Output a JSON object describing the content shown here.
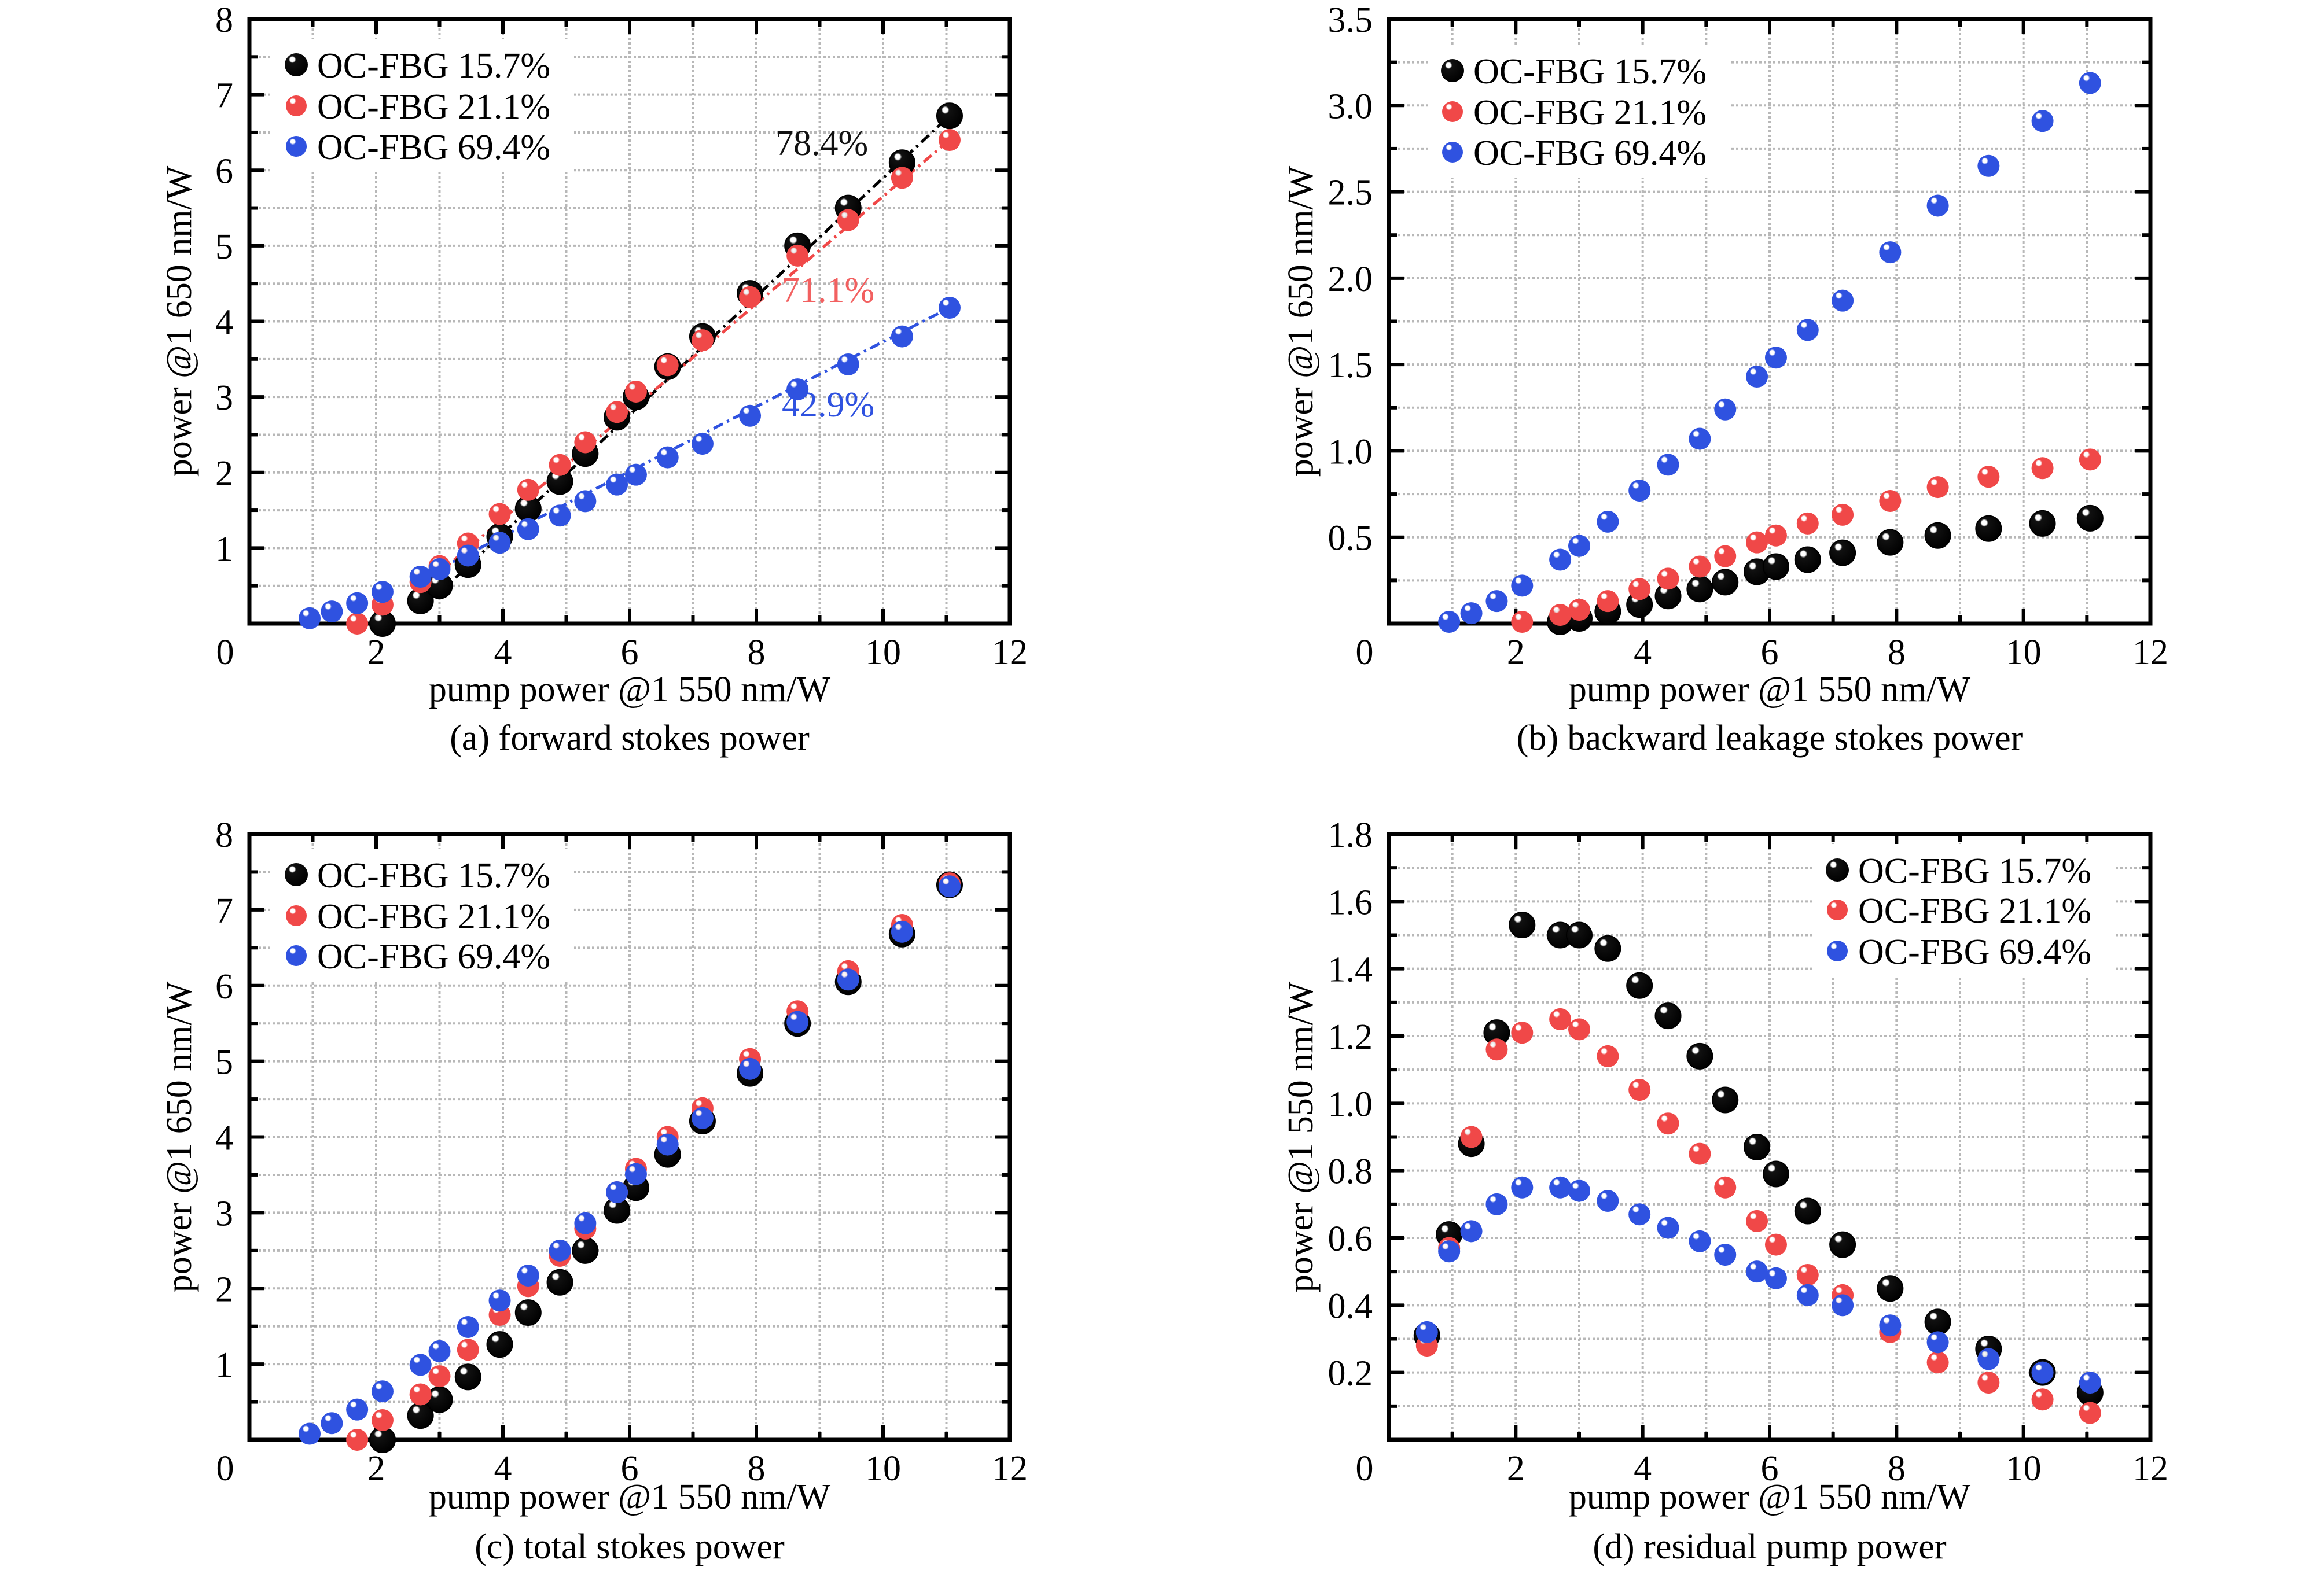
{
  "chart_data": [
    {
      "type": "scatter",
      "title": "(a) forward stokes power",
      "xlabel": "pump power @1 550 nm/W",
      "ylabel": "power @1 650 nm/W",
      "xlim": [
        0,
        12
      ],
      "ylim": [
        0,
        8
      ],
      "xticks": [
        "0",
        "2",
        "4",
        "6",
        "8",
        "10",
        "12"
      ],
      "yticks": [
        "1",
        "2",
        "3",
        "4",
        "5",
        "6",
        "7",
        "8"
      ],
      "grid": true,
      "legend": "top-left",
      "series": [
        {
          "name": "OC-FBG 15.7%",
          "color": "#111111",
          "x": [
            2.1,
            2.7,
            3.0,
            3.45,
            3.95,
            4.4,
            4.9,
            5.3,
            5.8,
            6.1,
            6.6,
            7.15,
            7.9,
            8.65,
            9.45,
            10.3,
            11.05
          ],
          "y": [
            0.0,
            0.3,
            0.5,
            0.78,
            1.15,
            1.52,
            1.88,
            2.25,
            2.73,
            3.0,
            3.4,
            3.8,
            4.37,
            5.0,
            5.5,
            6.1,
            6.72
          ],
          "fit": {
            "slope_label": "78.4%",
            "from": 3.0,
            "to": 11.05
          }
        },
        {
          "name": "OC-FBG 21.1%",
          "color": "#f04848",
          "x": [
            1.7,
            2.1,
            2.7,
            3.0,
            3.45,
            3.95,
            4.4,
            4.9,
            5.3,
            5.8,
            6.1,
            6.6,
            7.15,
            7.9,
            8.65,
            9.45,
            10.3,
            11.05
          ],
          "y": [
            0.0,
            0.25,
            0.55,
            0.76,
            1.06,
            1.45,
            1.77,
            2.1,
            2.4,
            2.8,
            3.07,
            3.42,
            3.75,
            4.32,
            4.87,
            5.34,
            5.9,
            6.4
          ],
          "fit": {
            "slope_label": "71.1%",
            "from": 2.7,
            "to": 11.05
          }
        },
        {
          "name": "OC-FBG 69.4%",
          "color": "#2f52e0",
          "x": [
            0.95,
            1.3,
            1.7,
            2.1,
            2.7,
            3.0,
            3.45,
            3.95,
            4.4,
            4.9,
            5.3,
            5.8,
            6.1,
            6.6,
            7.15,
            7.9,
            8.65,
            9.45,
            10.3,
            11.05
          ],
          "y": [
            0.07,
            0.16,
            0.27,
            0.42,
            0.62,
            0.72,
            0.9,
            1.07,
            1.25,
            1.43,
            1.62,
            1.84,
            1.97,
            2.2,
            2.38,
            2.75,
            3.1,
            3.43,
            3.8,
            4.18
          ],
          "fit": {
            "slope_label": "42.9%",
            "from": 3.0,
            "to": 11.05
          }
        }
      ]
    },
    {
      "type": "scatter",
      "title": "(b) backward leakage stokes power",
      "xlabel": "pump power @1 550 nm/W",
      "ylabel": "power @1 650 nm/W",
      "xlim": [
        0,
        12
      ],
      "ylim": [
        0,
        3.5
      ],
      "xticks": [
        "0",
        "2",
        "4",
        "6",
        "8",
        "10",
        "12"
      ],
      "yticks": [
        "0.5",
        "1.0",
        "1.5",
        "2.0",
        "2.5",
        "3.0",
        "3.5"
      ],
      "grid": true,
      "legend": "top-left",
      "series": [
        {
          "name": "OC-FBG 15.7%",
          "color": "#111111",
          "x": [
            2.7,
            3.0,
            3.45,
            3.95,
            4.4,
            4.9,
            5.3,
            5.8,
            6.1,
            6.6,
            7.15,
            7.9,
            8.65,
            9.45,
            10.3,
            11.05
          ],
          "y": [
            0.01,
            0.03,
            0.07,
            0.11,
            0.16,
            0.2,
            0.24,
            0.3,
            0.33,
            0.37,
            0.41,
            0.47,
            0.51,
            0.55,
            0.58,
            0.61
          ]
        },
        {
          "name": "OC-FBG 21.1%",
          "color": "#f04848",
          "x": [
            2.1,
            2.7,
            3.0,
            3.45,
            3.95,
            4.4,
            4.9,
            5.3,
            5.8,
            6.1,
            6.6,
            7.15,
            7.9,
            8.65,
            9.45,
            10.3,
            11.05
          ],
          "y": [
            0.01,
            0.05,
            0.08,
            0.13,
            0.2,
            0.26,
            0.33,
            0.39,
            0.47,
            0.51,
            0.58,
            0.63,
            0.71,
            0.79,
            0.85,
            0.9,
            0.95
          ]
        },
        {
          "name": "OC-FBG 69.4%",
          "color": "#2f52e0",
          "x": [
            0.95,
            1.3,
            1.7,
            2.1,
            2.7,
            3.0,
            3.45,
            3.95,
            4.4,
            4.9,
            5.3,
            5.8,
            6.1,
            6.6,
            7.15,
            7.9,
            8.65,
            9.45,
            10.3,
            11.05
          ],
          "y": [
            0.01,
            0.06,
            0.13,
            0.22,
            0.37,
            0.45,
            0.59,
            0.77,
            0.92,
            1.07,
            1.24,
            1.43,
            1.54,
            1.7,
            1.87,
            2.15,
            2.42,
            2.65,
            2.91,
            3.13
          ]
        }
      ]
    },
    {
      "type": "scatter",
      "title": "(c) total stokes power",
      "xlabel": "pump power @1 550 nm/W",
      "ylabel": "power @1 650 nm/W",
      "xlim": [
        0,
        12
      ],
      "ylim": [
        0,
        8
      ],
      "xticks": [
        "0",
        "2",
        "4",
        "6",
        "8",
        "10",
        "12"
      ],
      "yticks": [
        "1",
        "2",
        "3",
        "4",
        "5",
        "6",
        "7",
        "8"
      ],
      "grid": true,
      "legend": "top-left",
      "series": [
        {
          "name": "OC-FBG 15.7%",
          "color": "#111111",
          "x": [
            2.1,
            2.7,
            3.0,
            3.45,
            3.95,
            4.4,
            4.9,
            5.3,
            5.8,
            6.1,
            6.6,
            7.15,
            7.9,
            8.65,
            9.45,
            10.3,
            11.05
          ],
          "y": [
            0.0,
            0.32,
            0.53,
            0.83,
            1.26,
            1.68,
            2.08,
            2.5,
            3.03,
            3.33,
            3.77,
            4.21,
            4.84,
            5.5,
            6.05,
            6.68,
            7.33
          ]
        },
        {
          "name": "OC-FBG 21.1%",
          "color": "#f04848",
          "x": [
            1.7,
            2.1,
            2.7,
            3.0,
            3.45,
            3.95,
            4.4,
            4.9,
            5.3,
            5.8,
            6.1,
            6.6,
            7.15,
            7.9,
            8.65,
            9.45,
            10.3,
            11.05
          ],
          "y": [
            0.0,
            0.26,
            0.6,
            0.84,
            1.19,
            1.65,
            2.03,
            2.43,
            2.79,
            3.27,
            3.58,
            4.0,
            4.38,
            5.03,
            5.66,
            6.19,
            6.8,
            7.35
          ]
        },
        {
          "name": "OC-FBG 69.4%",
          "color": "#2f52e0",
          "x": [
            0.95,
            1.3,
            1.7,
            2.1,
            2.7,
            3.0,
            3.45,
            3.95,
            4.4,
            4.9,
            5.3,
            5.8,
            6.1,
            6.6,
            7.15,
            7.9,
            8.65,
            9.45,
            10.3,
            11.05
          ],
          "y": [
            0.08,
            0.22,
            0.4,
            0.64,
            0.99,
            1.17,
            1.49,
            1.84,
            2.17,
            2.5,
            2.86,
            3.27,
            3.51,
            3.9,
            4.25,
            4.9,
            5.52,
            6.08,
            6.71,
            7.31
          ]
        }
      ]
    },
    {
      "type": "scatter",
      "title": "(d) residual pump power",
      "xlabel": "pump power @1 550 nm/W",
      "ylabel": "power @1 550 nm/W",
      "xlim": [
        0,
        12
      ],
      "ylim": [
        0,
        1.8
      ],
      "xticks": [
        "0",
        "2",
        "4",
        "6",
        "8",
        "10",
        "12"
      ],
      "yticks": [
        "0.2",
        "0.4",
        "0.6",
        "0.8",
        "1.0",
        "1.2",
        "1.4",
        "1.6",
        "1.8"
      ],
      "grid": true,
      "legend": "top-right",
      "series": [
        {
          "name": "OC-FBG 15.7%",
          "color": "#111111",
          "x": [
            0.6,
            0.95,
            1.3,
            1.7,
            2.1,
            2.7,
            3.0,
            3.45,
            3.95,
            4.4,
            4.9,
            5.3,
            5.8,
            6.1,
            6.6,
            7.15,
            7.9,
            8.65,
            9.45,
            10.3,
            11.05
          ],
          "y": [
            0.31,
            0.61,
            0.88,
            1.21,
            1.53,
            1.5,
            1.5,
            1.46,
            1.35,
            1.26,
            1.14,
            1.01,
            0.87,
            0.79,
            0.68,
            0.58,
            0.45,
            0.35,
            0.27,
            0.2,
            0.14
          ]
        },
        {
          "name": "OC-FBG 21.1%",
          "color": "#f04848",
          "x": [
            0.6,
            0.95,
            1.3,
            1.7,
            2.1,
            2.7,
            3.0,
            3.45,
            3.95,
            4.4,
            4.9,
            5.3,
            5.8,
            6.1,
            6.6,
            7.15,
            7.9,
            8.65,
            9.45,
            10.3,
            11.05
          ],
          "y": [
            0.28,
            0.57,
            0.9,
            1.16,
            1.21,
            1.25,
            1.22,
            1.14,
            1.04,
            0.94,
            0.85,
            0.75,
            0.65,
            0.58,
            0.49,
            0.43,
            0.32,
            0.23,
            0.17,
            0.12,
            0.08
          ]
        },
        {
          "name": "OC-FBG 69.4%",
          "color": "#2f52e0",
          "x": [
            0.6,
            0.95,
            1.3,
            1.7,
            2.1,
            2.7,
            3.0,
            3.45,
            3.95,
            4.4,
            4.9,
            5.3,
            5.8,
            6.1,
            6.6,
            7.15,
            7.9,
            8.65,
            9.45,
            10.3,
            11.05
          ],
          "y": [
            0.32,
            0.56,
            0.62,
            0.7,
            0.75,
            0.75,
            0.74,
            0.71,
            0.67,
            0.63,
            0.59,
            0.55,
            0.5,
            0.48,
            0.43,
            0.4,
            0.34,
            0.29,
            0.24,
            0.2,
            0.17
          ]
        }
      ]
    }
  ]
}
